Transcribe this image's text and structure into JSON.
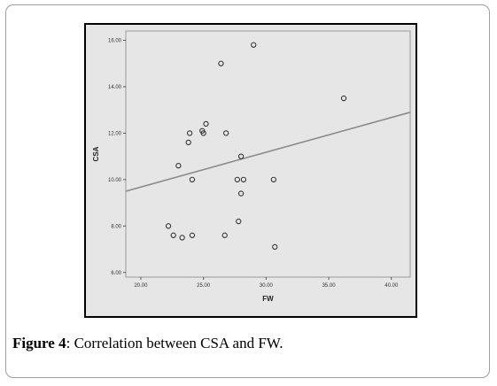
{
  "caption": {
    "lead": "Figure 4",
    "text": ": Correlation between CSA and FW."
  },
  "chart_data": {
    "type": "scatter",
    "title": "",
    "xlabel": "FW",
    "ylabel": "CSA",
    "xlim": [
      18.8,
      41.5
    ],
    "ylim": [
      5.8,
      16.4
    ],
    "x_ticks": [
      "20.00",
      "25.00",
      "30.00",
      "35.00",
      "40.00"
    ],
    "x_tick_values": [
      20,
      25,
      30,
      35,
      40
    ],
    "y_ticks": [
      "6.00",
      "8.00",
      "10.00",
      "12.00",
      "14.00",
      "16.00"
    ],
    "y_tick_values": [
      6,
      8,
      10,
      12,
      14,
      16
    ],
    "grid": false,
    "legend": "none",
    "points": [
      {
        "x": 22.2,
        "y": 8.0
      },
      {
        "x": 22.6,
        "y": 7.6
      },
      {
        "x": 23.0,
        "y": 10.6
      },
      {
        "x": 23.3,
        "y": 7.5
      },
      {
        "x": 23.8,
        "y": 11.6
      },
      {
        "x": 23.9,
        "y": 12.0
      },
      {
        "x": 24.1,
        "y": 10.0
      },
      {
        "x": 24.1,
        "y": 7.6
      },
      {
        "x": 24.9,
        "y": 12.1
      },
      {
        "x": 25.0,
        "y": 12.0
      },
      {
        "x": 25.2,
        "y": 12.4
      },
      {
        "x": 26.4,
        "y": 15.0
      },
      {
        "x": 26.7,
        "y": 7.6
      },
      {
        "x": 26.8,
        "y": 12.0
      },
      {
        "x": 27.7,
        "y": 10.0
      },
      {
        "x": 27.8,
        "y": 8.2
      },
      {
        "x": 28.0,
        "y": 11.0
      },
      {
        "x": 28.0,
        "y": 9.4
      },
      {
        "x": 28.2,
        "y": 10.0
      },
      {
        "x": 29.0,
        "y": 15.8
      },
      {
        "x": 30.6,
        "y": 10.0
      },
      {
        "x": 30.7,
        "y": 7.1
      },
      {
        "x": 36.2,
        "y": 13.5
      }
    ],
    "fit_line": {
      "x": [
        18.8,
        41.5
      ],
      "y": [
        9.5,
        12.9
      ]
    },
    "colors": {
      "background": "#e6e6e6",
      "frame": "#000000",
      "line": "#8a8a8a",
      "point": "#333333"
    }
  }
}
